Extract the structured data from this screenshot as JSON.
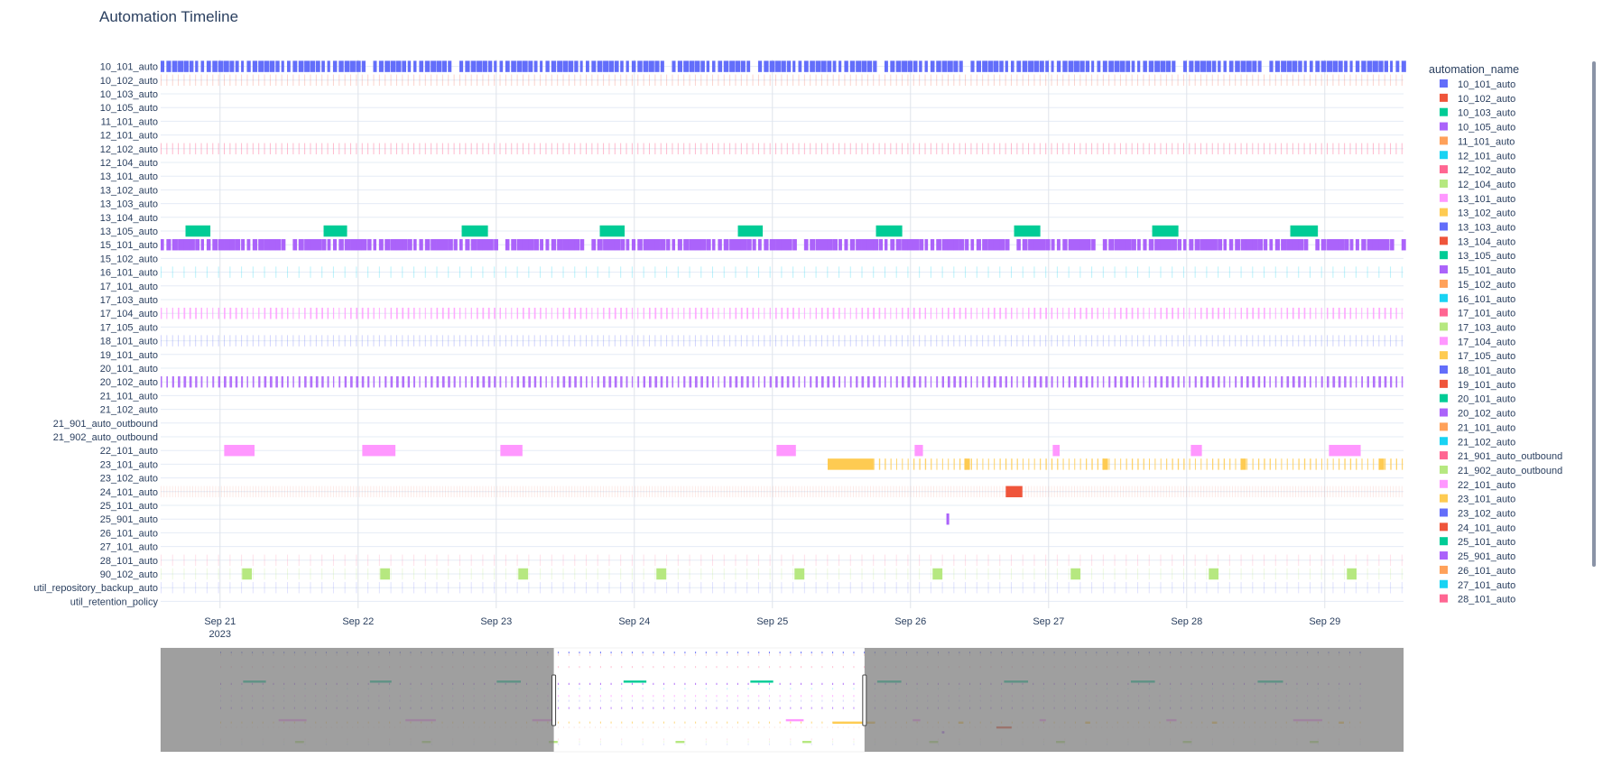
{
  "chart_data": {
    "type": "timeline",
    "title": "Automation Timeline",
    "legend_title": "automation_name",
    "legend_position": "right",
    "x_ticks": [
      {
        "label": "Sep 21",
        "sub": "2023",
        "t": 0
      },
      {
        "label": "Sep 22",
        "sub": "",
        "t": 1
      },
      {
        "label": "Sep 23",
        "sub": "",
        "t": 2
      },
      {
        "label": "Sep 24",
        "sub": "",
        "t": 3
      },
      {
        "label": "Sep 25",
        "sub": "",
        "t": 4
      },
      {
        "label": "Sep 26",
        "sub": "",
        "t": 5
      },
      {
        "label": "Sep 27",
        "sub": "",
        "t": 6
      },
      {
        "label": "Sep 28",
        "sub": "",
        "t": 7
      },
      {
        "label": "Sep 29",
        "sub": "",
        "t": 8
      }
    ],
    "x_range": [
      -0.43,
      8.57
    ],
    "rows": [
      "10_101_auto",
      "10_102_auto",
      "10_103_auto",
      "10_105_auto",
      "11_101_auto",
      "12_101_auto",
      "12_102_auto",
      "12_104_auto",
      "13_101_auto",
      "13_102_auto",
      "13_103_auto",
      "13_104_auto",
      "13_105_auto",
      "15_101_auto",
      "15_102_auto",
      "16_101_auto",
      "17_101_auto",
      "17_103_auto",
      "17_104_auto",
      "17_105_auto",
      "18_101_auto",
      "19_101_auto",
      "20_101_auto",
      "20_102_auto",
      "21_101_auto",
      "21_102_auto",
      "21_901_auto_outbound",
      "21_902_auto_outbound",
      "22_101_auto",
      "23_101_auto",
      "23_102_auto",
      "24_101_auto",
      "25_101_auto",
      "25_901_auto",
      "26_101_auto",
      "27_101_auto",
      "28_101_auto",
      "90_102_auto",
      "util_repository_backup_auto",
      "util_retention_policy"
    ],
    "legend_items": [
      {
        "name": "10_101_auto",
        "color": "#636efa"
      },
      {
        "name": "10_102_auto",
        "color": "#EF553B"
      },
      {
        "name": "10_103_auto",
        "color": "#00cc96"
      },
      {
        "name": "10_105_auto",
        "color": "#ab63fa"
      },
      {
        "name": "11_101_auto",
        "color": "#FFA15A"
      },
      {
        "name": "12_101_auto",
        "color": "#19d3f3"
      },
      {
        "name": "12_102_auto",
        "color": "#FF6692"
      },
      {
        "name": "12_104_auto",
        "color": "#B6E880"
      },
      {
        "name": "13_101_auto",
        "color": "#FF97FF"
      },
      {
        "name": "13_102_auto",
        "color": "#FECB52"
      },
      {
        "name": "13_103_auto",
        "color": "#636efa"
      },
      {
        "name": "13_104_auto",
        "color": "#EF553B"
      },
      {
        "name": "13_105_auto",
        "color": "#00cc96"
      },
      {
        "name": "15_101_auto",
        "color": "#ab63fa"
      },
      {
        "name": "15_102_auto",
        "color": "#FFA15A"
      },
      {
        "name": "16_101_auto",
        "color": "#19d3f3"
      },
      {
        "name": "17_101_auto",
        "color": "#FF6692"
      },
      {
        "name": "17_103_auto",
        "color": "#B6E880"
      },
      {
        "name": "17_104_auto",
        "color": "#FF97FF"
      },
      {
        "name": "17_105_auto",
        "color": "#FECB52"
      },
      {
        "name": "18_101_auto",
        "color": "#636efa"
      },
      {
        "name": "19_101_auto",
        "color": "#EF553B"
      },
      {
        "name": "20_101_auto",
        "color": "#00cc96"
      },
      {
        "name": "20_102_auto",
        "color": "#ab63fa"
      },
      {
        "name": "21_101_auto",
        "color": "#FFA15A"
      },
      {
        "name": "21_102_auto",
        "color": "#19d3f3"
      },
      {
        "name": "21_901_auto_outbound",
        "color": "#FF6692"
      },
      {
        "name": "21_902_auto_outbound",
        "color": "#B6E880"
      },
      {
        "name": "22_101_auto",
        "color": "#FF97FF"
      },
      {
        "name": "23_101_auto",
        "color": "#FECB52"
      },
      {
        "name": "23_102_auto",
        "color": "#636efa"
      },
      {
        "name": "24_101_auto",
        "color": "#EF553B"
      },
      {
        "name": "25_101_auto",
        "color": "#00cc96"
      },
      {
        "name": "25_901_auto",
        "color": "#ab63fa"
      },
      {
        "name": "26_101_auto",
        "color": "#FFA15A"
      },
      {
        "name": "27_101_auto",
        "color": "#19d3f3"
      },
      {
        "name": "28_101_auto",
        "color": "#FF6692"
      }
    ],
    "bars": [
      {
        "row": "13_105_auto",
        "color": "#00cc96",
        "spans": [
          [
            -0.25,
            -0.07
          ],
          [
            0.75,
            0.92
          ],
          [
            1.75,
            1.94
          ],
          [
            2.75,
            2.93
          ],
          [
            3.75,
            3.93
          ],
          [
            4.75,
            4.94
          ],
          [
            5.75,
            5.94
          ],
          [
            6.75,
            6.94
          ],
          [
            7.75,
            7.95
          ]
        ]
      },
      {
        "row": "22_101_auto",
        "color": "#FF97FF",
        "spans": [
          [
            0.03,
            0.25
          ],
          [
            1.03,
            1.27
          ],
          [
            2.03,
            2.19
          ],
          [
            4.03,
            4.17
          ],
          [
            5.03,
            5.09
          ],
          [
            6.03,
            6.08
          ],
          [
            7.03,
            7.11
          ],
          [
            8.03,
            8.26
          ]
        ]
      },
      {
        "row": "90_102_auto",
        "color": "#B6E880",
        "spans": [
          [
            0.16,
            0.23
          ],
          [
            1.16,
            1.23
          ],
          [
            2.16,
            2.23
          ],
          [
            3.16,
            3.23
          ],
          [
            4.16,
            4.23
          ],
          [
            5.16,
            5.23
          ],
          [
            6.16,
            6.23
          ],
          [
            7.16,
            7.23
          ],
          [
            8.16,
            8.23
          ]
        ]
      },
      {
        "row": "23_101_auto",
        "color": "#FECB52",
        "spans": [
          [
            4.4,
            4.73
          ],
          [
            5.39,
            5.43
          ],
          [
            6.39,
            6.43
          ],
          [
            7.39,
            7.43
          ],
          [
            8.39,
            8.43
          ]
        ]
      },
      {
        "row": "24_101_auto",
        "color": "#EF553B",
        "spans": [
          [
            5.69,
            5.81
          ]
        ]
      },
      {
        "row": "25_901_auto",
        "color": "#ab63fa",
        "spans": [
          [
            5.26,
            5.28
          ]
        ]
      }
    ],
    "dense_rows": [
      {
        "row": "10_101_auto",
        "color": "#636efa",
        "step": 0.0416,
        "width": 0.026,
        "opacity": 1.0
      },
      {
        "row": "15_101_auto",
        "color": "#ab63fa",
        "step": 0.0416,
        "width": 0.03,
        "opacity": 1.0
      },
      {
        "row": "20_102_auto",
        "color": "#ab63fa",
        "step": 0.0416,
        "width": 0.012,
        "opacity": 0.9
      },
      {
        "row": "17_104_auto",
        "color": "#FF97FF",
        "step": 0.0416,
        "width": 0.008,
        "opacity": 0.8
      },
      {
        "row": "12_102_auto",
        "color": "#FF6692",
        "step": 0.0416,
        "width": 0.004,
        "opacity": 0.45
      },
      {
        "row": "10_102_auto",
        "color": "#EF553B",
        "step": 0.0416,
        "width": 0.003,
        "opacity": 0.25
      },
      {
        "row": "18_101_auto",
        "color": "#636efa",
        "step": 0.0416,
        "width": 0.004,
        "opacity": 0.3
      },
      {
        "row": "16_101_auto",
        "color": "#19d3f3",
        "step": 0.0832,
        "width": 0.003,
        "opacity": 0.3
      },
      {
        "row": "23_101_auto",
        "color": "#FECB52",
        "step": 0.0416,
        "width": 0.006,
        "opacity": 0.85,
        "from": 4.73
      },
      {
        "row": "24_101_auto",
        "color": "#EF553B",
        "step": 0.0208,
        "width": 0.004,
        "opacity": 0.12
      },
      {
        "row": "28_101_auto",
        "color": "#FF6692",
        "step": 0.0832,
        "width": 0.003,
        "opacity": 0.2
      },
      {
        "row": "90_102_auto",
        "color": "#B6E880",
        "step": 0.0832,
        "width": 0.003,
        "opacity": 0.25
      },
      {
        "row": "util_repository_backup_auto",
        "color": "#636efa",
        "step": 0.0832,
        "width": 0.003,
        "opacity": 0.2
      }
    ],
    "range_slider": {
      "selected": [
        -0.43,
        8.57
      ],
      "window": [
        2.2,
        4.65
      ],
      "full": [
        -0.9,
        8.9
      ]
    }
  }
}
